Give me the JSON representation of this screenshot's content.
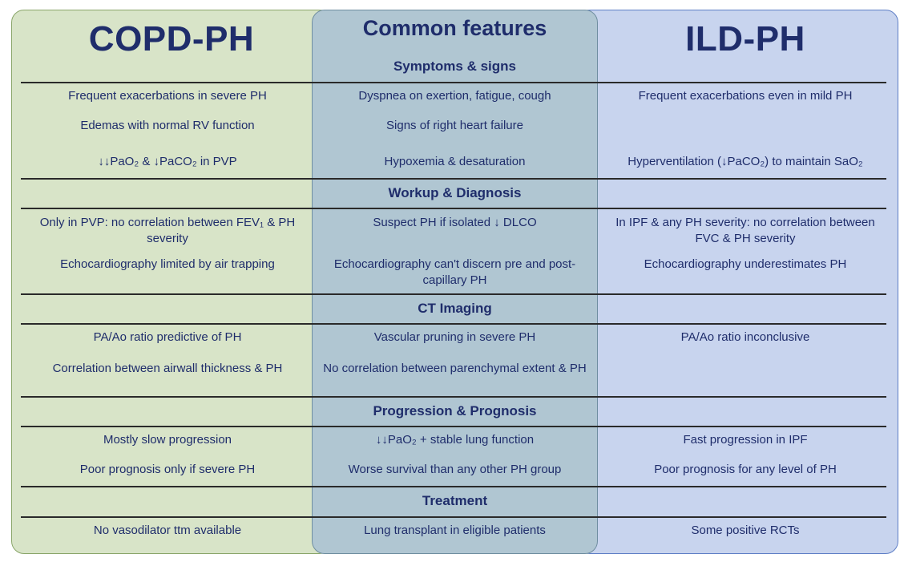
{
  "columns": {
    "left_title": "COPD-PH",
    "middle_title": "Common features",
    "right_title": "ILD-PH"
  },
  "colors": {
    "left_panel": "#d8e4c8",
    "middle_panel": "#b0c6d2",
    "right_panel": "#c8d4ee",
    "text": "#1f2d6b"
  },
  "sections": [
    {
      "title": "Symptoms & signs",
      "rows": [
        {
          "left": "Frequent exacerbations in severe PH",
          "middle": "Dyspnea on exertion, fatigue, cough",
          "right": "Frequent exacerbations even in mild PH"
        },
        {
          "left": "Edemas with normal RV function",
          "middle": "Signs of right heart failure",
          "right": ""
        },
        {
          "left": "↓↓PaO₂ & ↓PaCO₂ in PVP",
          "middle": "Hypoxemia & desaturation",
          "right": "Hyperventilation (↓PaCO₂) to maintain SaO₂"
        }
      ]
    },
    {
      "title": "Workup & Diagnosis",
      "rows": [
        {
          "left": "Only in PVP: no correlation between FEV₁ & PH severity",
          "middle": "Suspect PH if isolated ↓ DLCO",
          "right": "In IPF & any PH severity: no correlation between FVC & PH severity"
        },
        {
          "left": "Echocardiography limited by air trapping",
          "middle": "Echocardiography can't discern pre and post-capillary PH",
          "right": "Echocardiography underestimates PH"
        }
      ]
    },
    {
      "title": "CT Imaging",
      "rows": [
        {
          "left": "PA/Ao ratio predictive of PH",
          "middle": "Vascular pruning in severe PH",
          "right": "PA/Ao ratio inconclusive"
        },
        {
          "left": "Correlation between airwall thickness & PH",
          "middle": "No correlation between parenchymal extent & PH",
          "right": ""
        }
      ]
    },
    {
      "title": "Progression & Prognosis",
      "rows": [
        {
          "left": "Mostly slow progression",
          "middle": "↓↓PaO₂ + stable lung function",
          "right": "Fast progression in IPF"
        },
        {
          "left": "Poor prognosis only if severe PH",
          "middle": "Worse survival than any other PH group",
          "right": "Poor prognosis for any level of PH"
        }
      ]
    },
    {
      "title": "Treatment",
      "rows": [
        {
          "left": "No vasodilator ttm available",
          "middle": "Lung transplant in eligible patients",
          "right": "Some positive RCTs"
        }
      ]
    }
  ]
}
